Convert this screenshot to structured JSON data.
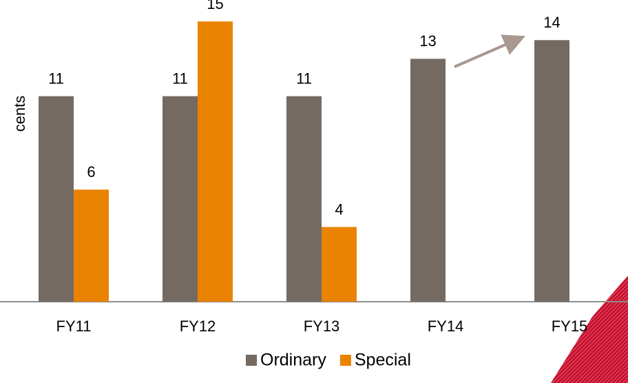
{
  "chart_data": {
    "type": "bar",
    "y_label": "cents",
    "categories": [
      "FY11",
      "FY12",
      "FY13",
      "FY14",
      "FY15"
    ],
    "series": [
      {
        "name": "Ordinary",
        "color": "#756a62",
        "values": [
          11,
          11,
          11,
          13,
          14
        ]
      },
      {
        "name": "Special",
        "color": "#e98300",
        "values": [
          6,
          15,
          4,
          null,
          null
        ]
      }
    ],
    "ylim": [
      0,
      16
    ]
  }
}
